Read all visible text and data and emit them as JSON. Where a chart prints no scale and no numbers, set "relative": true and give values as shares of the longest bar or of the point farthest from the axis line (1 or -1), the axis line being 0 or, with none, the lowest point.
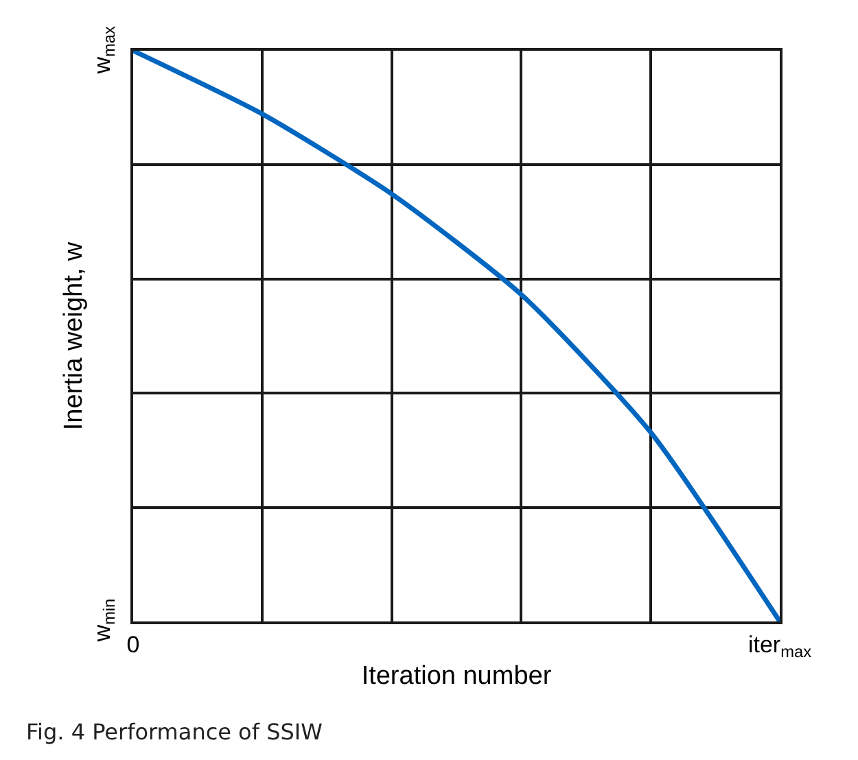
{
  "chart_data": {
    "type": "line",
    "title": "Fig. 4 Performance of SSIW",
    "xlabel": "Iteration number",
    "ylabel": "Inertia weight, w",
    "categories": [
      "0",
      null,
      null,
      null,
      null,
      "iter$_{max}$"
    ],
    "series": [
      {
        "color": "#0066bf",
        "values": [
          1,
          0.889,
          0.749,
          0.573,
          0.332,
          0
        ]
      }
    ],
    "relative": true,
    "annotations": [
      "w$_{max}$",
      "w$_{min}$"
    ],
    "grid": true,
    "marker": "none",
    "line_style": "solid"
  }
}
